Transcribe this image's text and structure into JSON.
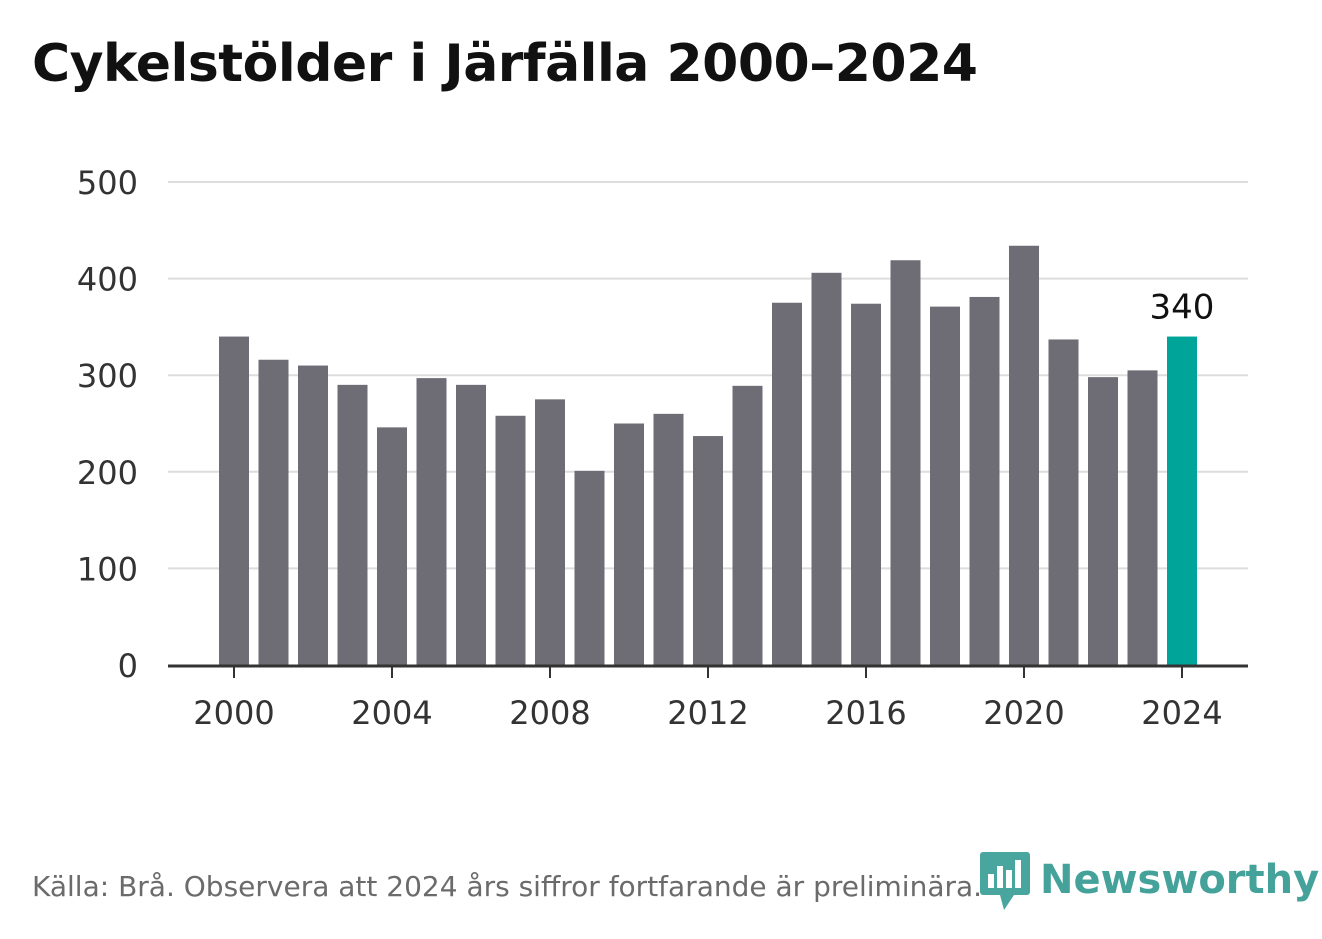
{
  "title": "Cykelstölder i Järfälla 2000–2024",
  "source": "Källa: Brå. Observera att 2024 års siffror fortfarande är preliminära.",
  "logo": {
    "text": "Newsworthy",
    "icon": "newsworthy-chart-icon",
    "color": "#3a9e96"
  },
  "colors": {
    "bar": "#6e6d75",
    "highlight": "#00a499",
    "grid": "#dddddd",
    "axis": "#333333",
    "text": "#333333"
  },
  "chart_data": {
    "type": "bar",
    "x": [
      2000,
      2001,
      2002,
      2003,
      2004,
      2005,
      2006,
      2007,
      2008,
      2009,
      2010,
      2011,
      2012,
      2013,
      2014,
      2015,
      2016,
      2017,
      2018,
      2019,
      2020,
      2021,
      2022,
      2023,
      2024
    ],
    "values": [
      340,
      316,
      310,
      290,
      246,
      297,
      290,
      258,
      275,
      201,
      250,
      260,
      237,
      289,
      375,
      406,
      374,
      419,
      371,
      381,
      434,
      337,
      298,
      305,
      340
    ],
    "highlight_index": 24,
    "highlight_label": "340",
    "ylim": [
      0,
      500
    ],
    "yticks": [
      "0",
      "100",
      "200",
      "300",
      "400",
      "500"
    ],
    "xticks": [
      "2000",
      "2004",
      "2008",
      "2012",
      "2016",
      "2020",
      "2024"
    ],
    "grid": true,
    "title": "Cykelstölder i Järfälla 2000–2024",
    "xlabel": "",
    "ylabel": ""
  }
}
